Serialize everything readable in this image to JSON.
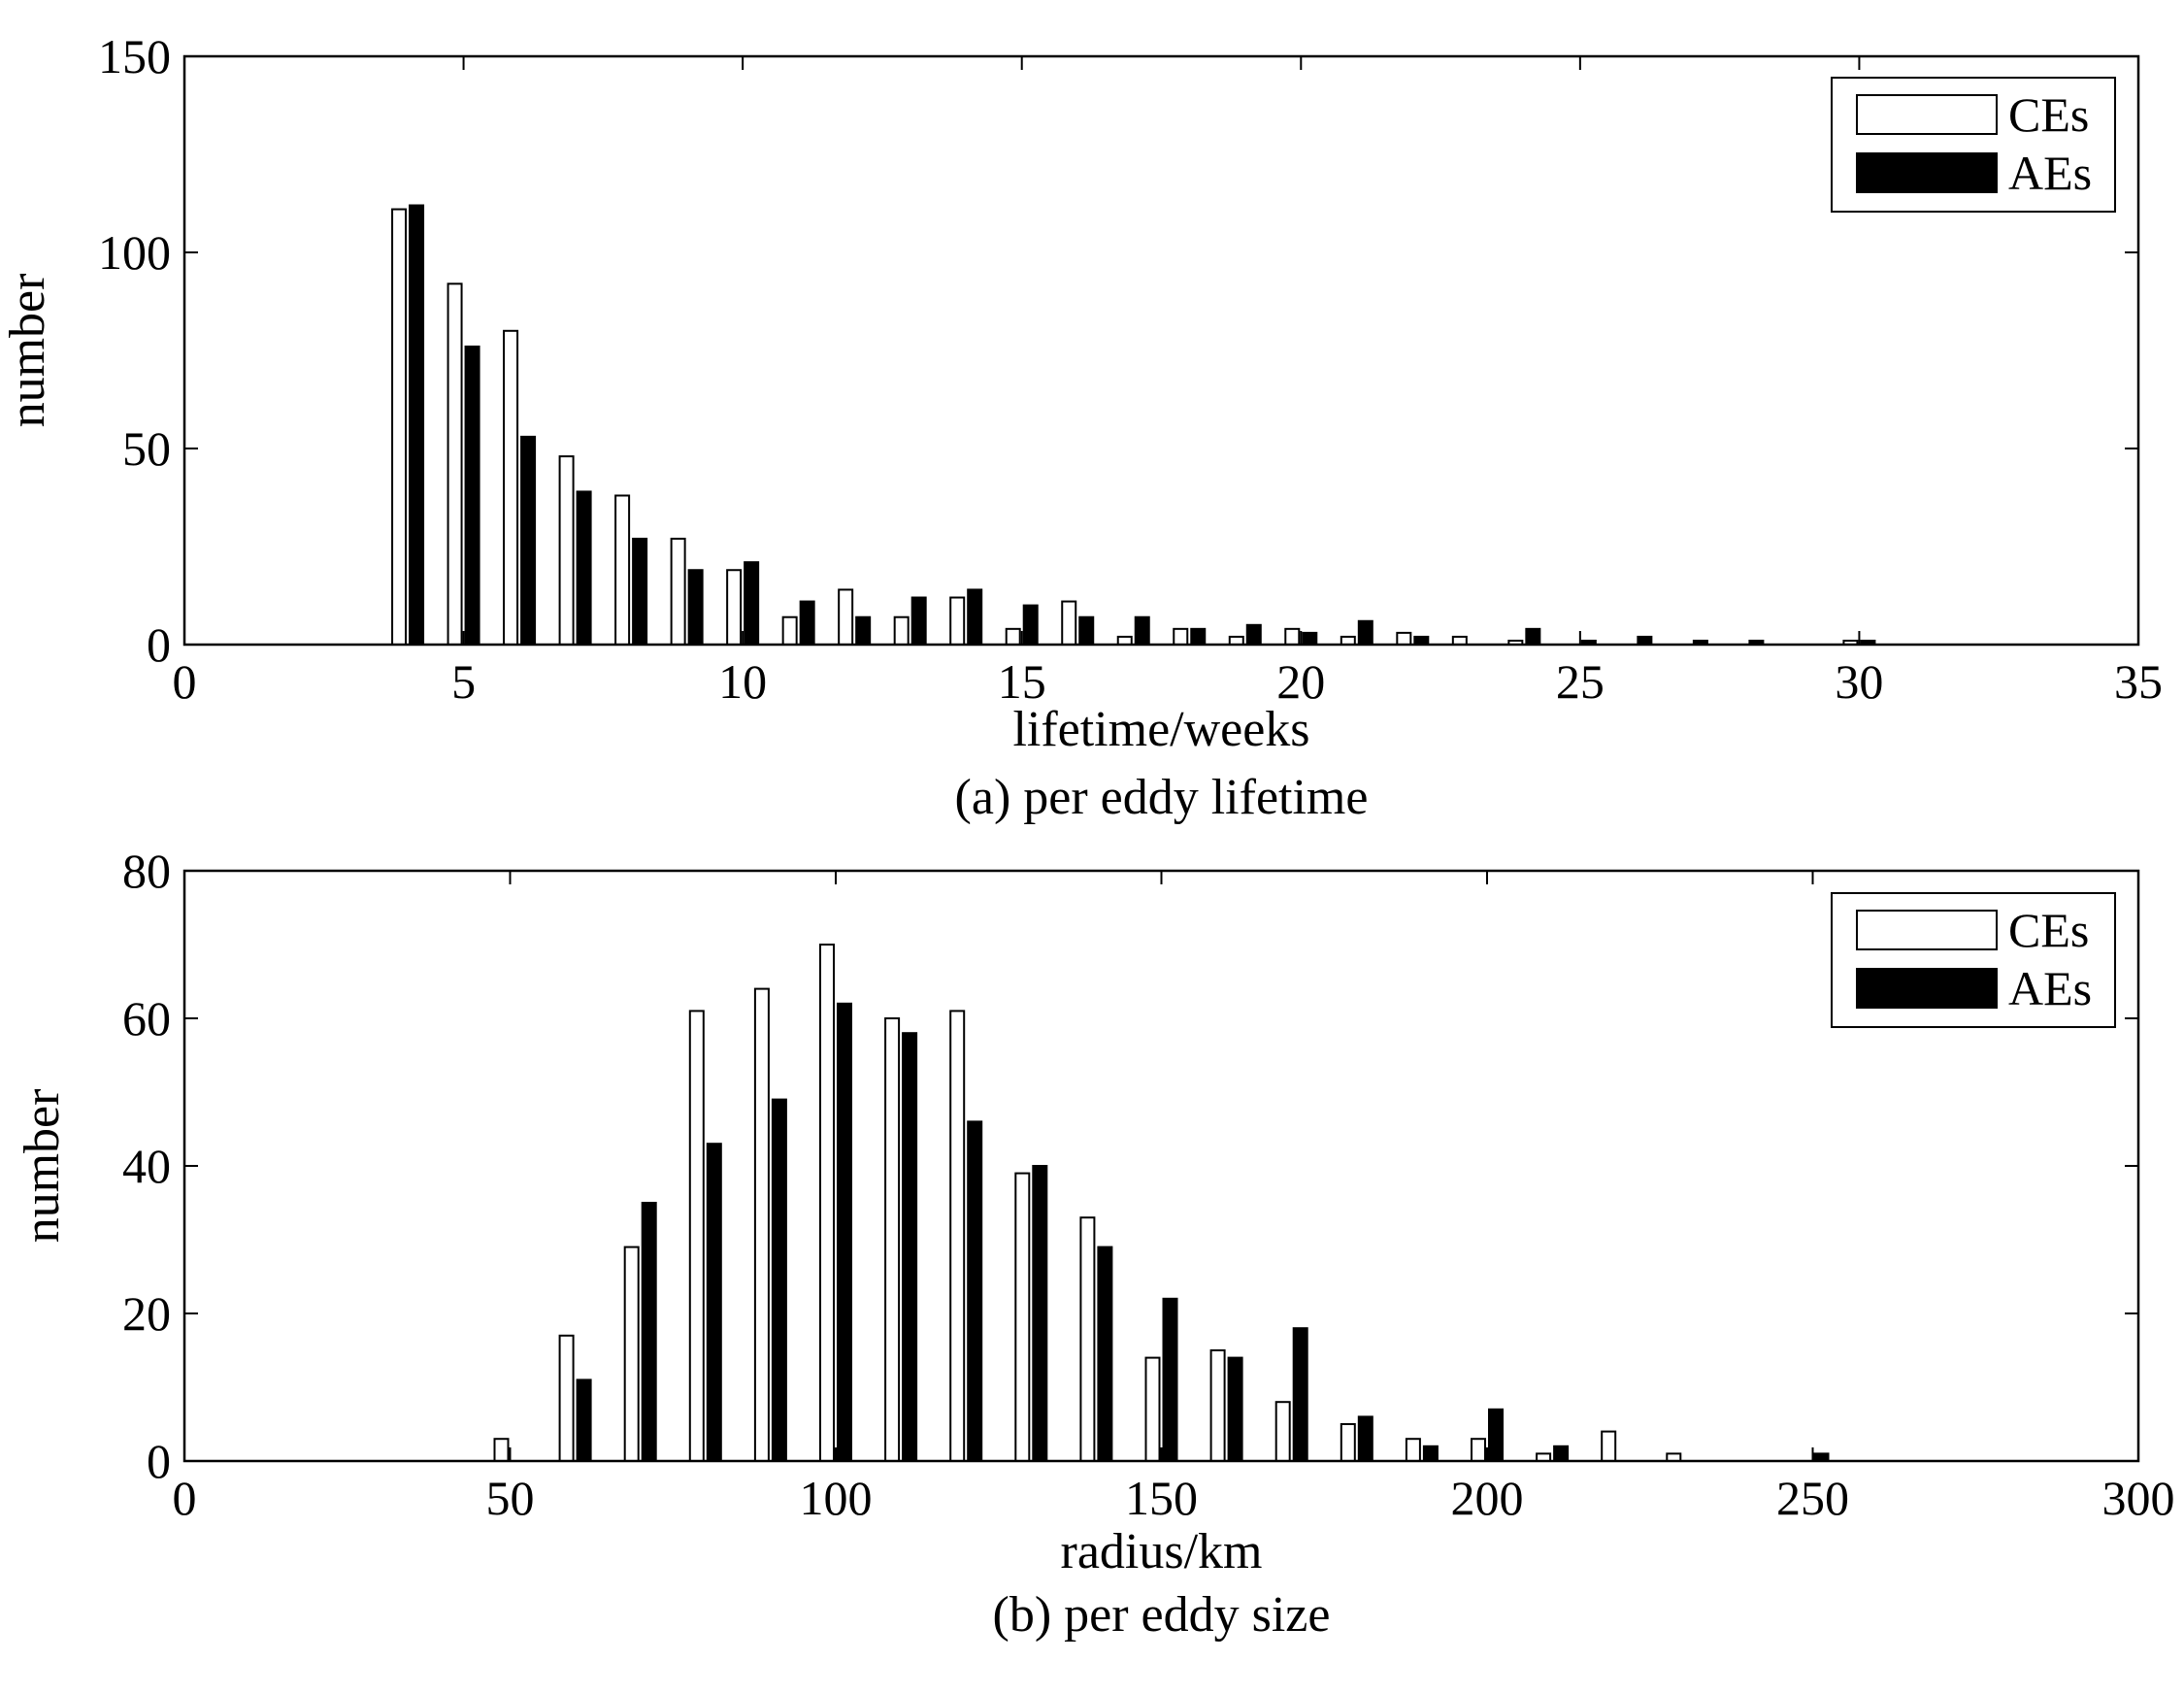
{
  "chart_data": [
    {
      "type": "bar",
      "caption": "(a) per eddy lifetime",
      "xlabel": "lifetime/weeks",
      "ylabel": "number",
      "xlim": [
        0,
        35
      ],
      "ylim": [
        0,
        150
      ],
      "xticks": [
        0,
        5,
        10,
        15,
        20,
        25,
        30,
        35
      ],
      "yticks": [
        0,
        50,
        100,
        150
      ],
      "grid": false,
      "legend_position": "top-right",
      "x": [
        4,
        5,
        6,
        7,
        8,
        9,
        10,
        11,
        12,
        13,
        14,
        15,
        16,
        17,
        18,
        19,
        20,
        21,
        22,
        23,
        24,
        25,
        26,
        27,
        28,
        29,
        30
      ],
      "series": [
        {
          "name": "CEs",
          "fill": "#ffffff",
          "values": [
            111,
            92,
            80,
            48,
            38,
            27,
            19,
            7,
            14,
            7,
            12,
            4,
            11,
            2,
            4,
            2,
            4,
            2,
            3,
            2,
            1,
            0,
            0,
            0,
            0,
            0,
            1
          ]
        },
        {
          "name": "AEs",
          "fill": "#000000",
          "values": [
            112,
            76,
            53,
            39,
            27,
            19,
            21,
            11,
            7,
            12,
            14,
            10,
            7,
            7,
            4,
            5,
            3,
            6,
            2,
            0,
            4,
            1,
            2,
            1,
            1,
            0,
            1
          ]
        }
      ]
    },
    {
      "type": "bar",
      "caption": "(b) per eddy size",
      "xlabel": "radius/km",
      "ylabel": "number",
      "xlim": [
        0,
        300
      ],
      "ylim": [
        0,
        80
      ],
      "xticks": [
        0,
        50,
        100,
        150,
        200,
        250,
        300
      ],
      "yticks": [
        0,
        20,
        40,
        60,
        80
      ],
      "grid": false,
      "legend_position": "top-right",
      "x": [
        50,
        60,
        70,
        80,
        90,
        100,
        110,
        120,
        130,
        140,
        150,
        160,
        170,
        180,
        190,
        200,
        210,
        220,
        230,
        240,
        250
      ],
      "series": [
        {
          "name": "CEs",
          "fill": "#ffffff",
          "values": [
            3,
            17,
            29,
            61,
            64,
            70,
            60,
            61,
            39,
            33,
            14,
            15,
            8,
            5,
            3,
            3,
            1,
            4,
            1,
            0,
            0
          ]
        },
        {
          "name": "AEs",
          "fill": "#000000",
          "values": [
            0,
            11,
            35,
            43,
            49,
            62,
            58,
            46,
            40,
            29,
            22,
            14,
            18,
            6,
            2,
            7,
            2,
            0,
            0,
            0,
            1
          ]
        }
      ]
    }
  ]
}
